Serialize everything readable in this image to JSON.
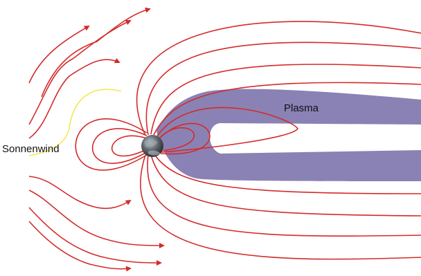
{
  "labels": {
    "solar_wind": "Sonnenwind",
    "plasma": "Plasma"
  },
  "colors": {
    "field_line": "#d42a2a",
    "plasma": "#8a82b4",
    "solar_wind_trace": "#f5e64a",
    "background": "#ffffff"
  },
  "icons": {
    "earth": "earth-globe-icon"
  }
}
